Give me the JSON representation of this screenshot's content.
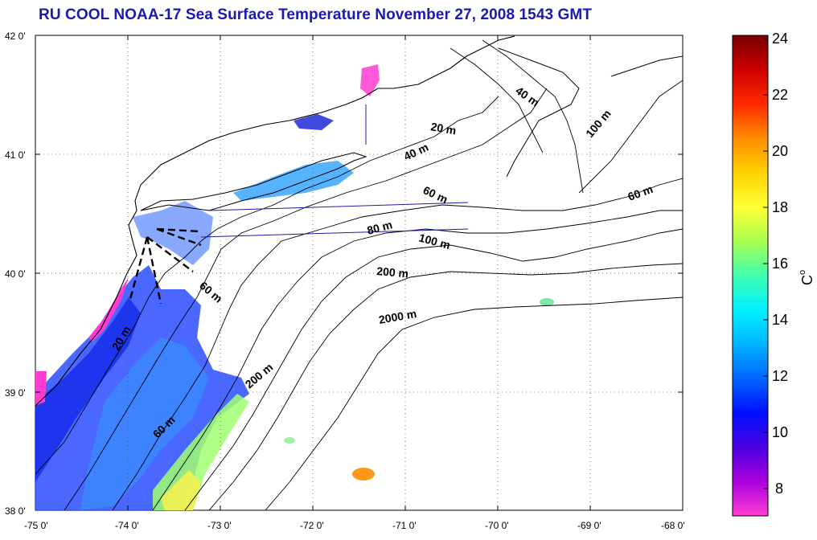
{
  "title": "RU COOL  NOAA-17 Sea Surface Temperature November 27, 2008 1543 GMT",
  "x_ticks": [
    "-75 0'",
    "-74 0'",
    "-73 0'",
    "-72 0'",
    "-71 0'",
    "-70 0'",
    "-69 0'",
    "-68 0'"
  ],
  "y_ticks": [
    "42 0'",
    "41 0'",
    "40 0'",
    "39 0'",
    "38 0'"
  ],
  "colorbar": {
    "ticks": [
      "24",
      "22",
      "20",
      "18",
      "16",
      "14",
      "12",
      "10",
      "8"
    ],
    "unit": "C",
    "unit_sup": "o",
    "colors": [
      "#7a0000",
      "#cc0000",
      "#ff2a00",
      "#ff8c00",
      "#ffd200",
      "#ffff33",
      "#a8ff50",
      "#40ffb0",
      "#00f0ff",
      "#00b4ff",
      "#0064ff",
      "#0010ff",
      "#4a00e0",
      "#aa00dd",
      "#ff3cd2"
    ]
  },
  "contour_labels": [
    "40 m",
    "20 m",
    "40 m",
    "100 m",
    "60 m",
    "60 m",
    "80 m",
    "100 m",
    "200 m",
    "2000 m",
    "60 m",
    "20 m",
    "200 m",
    "60 m"
  ]
}
